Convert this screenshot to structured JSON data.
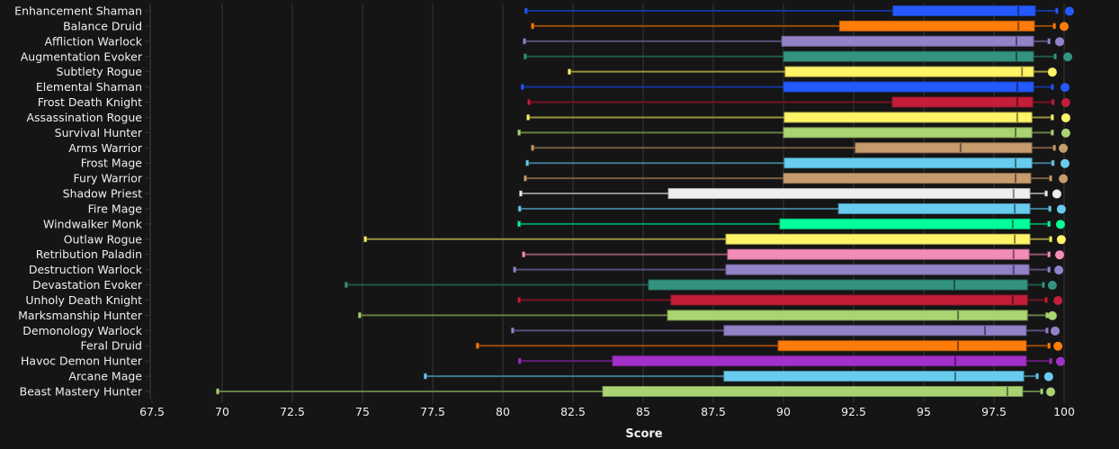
{
  "chart_data": {
    "type": "boxplot",
    "orientation": "horizontal",
    "title": "",
    "xlabel": "Score",
    "ylabel": "",
    "xlim": [
      67.5,
      100
    ],
    "xticks": [
      "67.5",
      "70",
      "72.5",
      "75",
      "77.5",
      "80",
      "82.5",
      "85",
      "87.5",
      "90",
      "92.5",
      "95",
      "97.5",
      "100"
    ],
    "xtick_values": [
      67.5,
      70,
      72.5,
      75,
      77.5,
      80,
      82.5,
      85,
      87.5,
      90,
      92.5,
      95,
      97.5,
      100
    ],
    "grid": "vertical",
    "legend": "none",
    "series": [
      {
        "name": "Enhancement Shaman",
        "color": "#2459FF",
        "low": 80.83,
        "q1": 93.9,
        "median": 98.37,
        "q3": 98.97,
        "high": 99.74,
        "max": 100.19
      },
      {
        "name": "Balance Druid",
        "color": "#FF7C0A",
        "low": 81.06,
        "q1": 92.0,
        "median": 98.37,
        "q3": 98.94,
        "high": 99.65,
        "max": 100.0
      },
      {
        "name": "Affliction Warlock",
        "color": "#9482C9",
        "low": 80.77,
        "q1": 89.94,
        "median": 98.3,
        "q3": 98.91,
        "high": 99.46,
        "max": 99.84
      },
      {
        "name": "Augmentation Evoker",
        "color": "#33937F",
        "low": 80.8,
        "q1": 90.0,
        "median": 98.3,
        "q3": 98.91,
        "high": 99.68,
        "max": 100.13
      },
      {
        "name": "Subtlety Rogue",
        "color": "#FFF468",
        "low": 82.37,
        "q1": 90.06,
        "median": 98.5,
        "q3": 98.91,
        "high": 99.5,
        "max": 99.58
      },
      {
        "name": "Elemental Shaman",
        "color": "#2459FF",
        "low": 80.7,
        "q1": 90.0,
        "median": 98.33,
        "q3": 98.91,
        "high": 99.58,
        "max": 100.03
      },
      {
        "name": "Frost Death Knight",
        "color": "#C41E3A",
        "low": 80.93,
        "q1": 93.88,
        "median": 98.33,
        "q3": 98.88,
        "high": 99.6,
        "max": 100.06
      },
      {
        "name": "Assassination Rogue",
        "color": "#FFF468",
        "low": 80.9,
        "q1": 90.03,
        "median": 98.33,
        "q3": 98.85,
        "high": 99.58,
        "max": 100.06
      },
      {
        "name": "Survival Hunter",
        "color": "#AAD372",
        "low": 80.58,
        "q1": 90.0,
        "median": 98.27,
        "q3": 98.85,
        "high": 99.58,
        "max": 100.06
      },
      {
        "name": "Arms Warrior",
        "color": "#C69B6D",
        "low": 81.06,
        "q1": 92.56,
        "median": 96.31,
        "q3": 98.85,
        "high": 99.65,
        "max": 99.97
      },
      {
        "name": "Frost Mage",
        "color": "#68CCEF",
        "low": 80.87,
        "q1": 90.03,
        "median": 98.27,
        "q3": 98.85,
        "high": 99.6,
        "max": 100.03
      },
      {
        "name": "Fury Warrior",
        "color": "#C69B6D",
        "low": 80.8,
        "q1": 90.0,
        "median": 98.27,
        "q3": 98.81,
        "high": 99.52,
        "max": 99.97
      },
      {
        "name": "Shadow Priest",
        "color": "#EEEEEE",
        "low": 80.64,
        "q1": 85.9,
        "median": 98.2,
        "q3": 98.78,
        "high": 99.36,
        "max": 99.74
      },
      {
        "name": "Fire Mage",
        "color": "#68CCEF",
        "low": 80.6,
        "q1": 91.96,
        "median": 98.24,
        "q3": 98.78,
        "high": 99.49,
        "max": 99.9
      },
      {
        "name": "Windwalker Monk",
        "color": "#00FF98",
        "low": 80.58,
        "q1": 89.87,
        "median": 98.17,
        "q3": 98.78,
        "high": 99.46,
        "max": 99.87
      },
      {
        "name": "Outlaw Rogue",
        "color": "#FFF468",
        "low": 75.1,
        "q1": 87.95,
        "median": 98.24,
        "q3": 98.78,
        "high": 99.52,
        "max": 99.9
      },
      {
        "name": "Retribution Paladin",
        "color": "#F48CBA",
        "low": 80.74,
        "q1": 88.01,
        "median": 98.2,
        "q3": 98.75,
        "high": 99.46,
        "max": 99.84
      },
      {
        "name": "Destruction Warlock",
        "color": "#9482C9",
        "low": 80.42,
        "q1": 87.95,
        "median": 98.2,
        "q3": 98.75,
        "high": 99.46,
        "max": 99.81
      },
      {
        "name": "Devastation Evoker",
        "color": "#33937F",
        "low": 74.42,
        "q1": 85.19,
        "median": 96.09,
        "q3": 98.69,
        "high": 99.26,
        "max": 99.58
      },
      {
        "name": "Unholy Death Knight",
        "color": "#C41E3A",
        "low": 80.58,
        "q1": 85.99,
        "median": 98.17,
        "q3": 98.69,
        "high": 99.36,
        "max": 99.78
      },
      {
        "name": "Marksmanship Hunter",
        "color": "#AAD372",
        "low": 74.9,
        "q1": 85.87,
        "median": 96.22,
        "q3": 98.69,
        "high": 99.39,
        "max": 99.58
      },
      {
        "name": "Demonology Warlock",
        "color": "#9482C9",
        "low": 80.35,
        "q1": 87.88,
        "median": 97.18,
        "q3": 98.65,
        "high": 99.39,
        "max": 99.68
      },
      {
        "name": "Feral Druid",
        "color": "#FF7C0A",
        "low": 79.1,
        "q1": 89.81,
        "median": 96.22,
        "q3": 98.65,
        "high": 99.46,
        "max": 99.78
      },
      {
        "name": "Havoc Demon Hunter",
        "color": "#A330C9",
        "low": 80.6,
        "q1": 83.91,
        "median": 96.12,
        "q3": 98.65,
        "high": 99.52,
        "max": 99.87
      },
      {
        "name": "Arcane Mage",
        "color": "#68CCEF",
        "low": 77.24,
        "q1": 87.88,
        "median": 96.12,
        "q3": 98.56,
        "high": 99.04,
        "max": 99.45
      },
      {
        "name": "Beast Mastery Hunter",
        "color": "#AAD372",
        "low": 69.84,
        "q1": 83.56,
        "median": 97.98,
        "q3": 98.52,
        "high": 99.2,
        "max": 99.52
      }
    ]
  }
}
